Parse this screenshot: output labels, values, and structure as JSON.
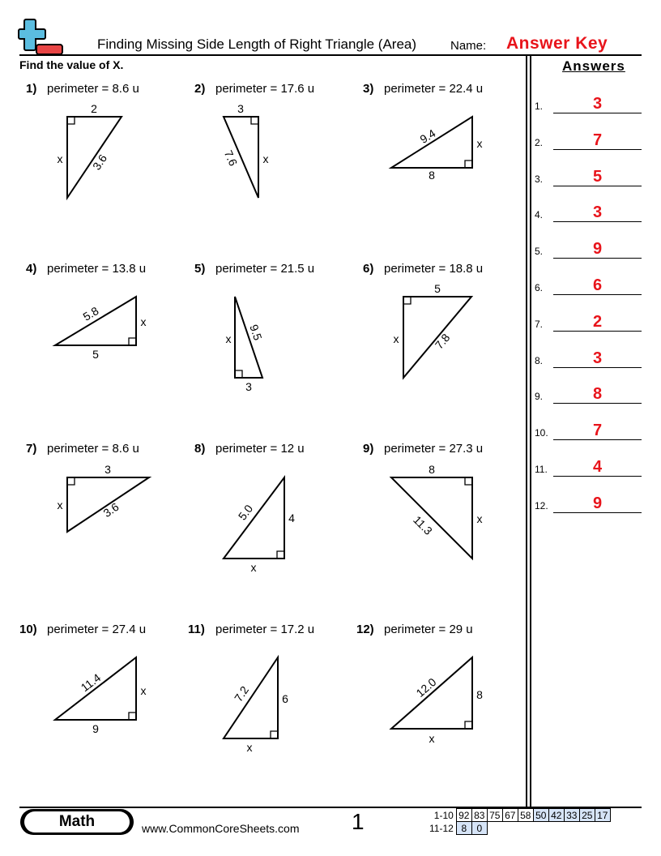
{
  "header": {
    "title": "Finding Missing Side Length of Right Triangle (Area)",
    "name_label": "Name:",
    "name_value": "Answer Key",
    "instructions": "Find the value of X.",
    "logo": "plus-minus-logo"
  },
  "colors": {
    "accent_red": "#e8141b",
    "logo_blue": "#5bbde0",
    "logo_red": "#e84545",
    "score_blue": "#d6e4f7"
  },
  "problems": [
    {
      "num": "1)",
      "text": "perimeter = 8.6 u",
      "labels": [
        "2",
        "x",
        "3.6"
      ]
    },
    {
      "num": "2)",
      "text": "perimeter = 17.6 u",
      "labels": [
        "3",
        "7.6",
        "x"
      ]
    },
    {
      "num": "3)",
      "text": "perimeter = 22.4 u",
      "labels": [
        "9.4",
        "x",
        "8"
      ]
    },
    {
      "num": "4)",
      "text": "perimeter = 13.8 u",
      "labels": [
        "5.8",
        "x",
        "5"
      ]
    },
    {
      "num": "5)",
      "text": "perimeter = 21.5 u",
      "labels": [
        "x",
        "9.5",
        "3"
      ]
    },
    {
      "num": "6)",
      "text": "perimeter = 18.8 u",
      "labels": [
        "5",
        "x",
        "7.8"
      ]
    },
    {
      "num": "7)",
      "text": "perimeter = 8.6 u",
      "labels": [
        "3",
        "x",
        "3.6"
      ]
    },
    {
      "num": "8)",
      "text": "perimeter = 12 u",
      "labels": [
        "5.0",
        "4",
        "x"
      ]
    },
    {
      "num": "9)",
      "text": "perimeter = 27.3 u",
      "labels": [
        "8",
        "11.3",
        "x"
      ]
    },
    {
      "num": "10)",
      "text": "perimeter = 27.4 u",
      "labels": [
        "11.4",
        "x",
        "9"
      ]
    },
    {
      "num": "11)",
      "text": "perimeter = 17.2 u",
      "labels": [
        "7.2",
        "6",
        "x"
      ]
    },
    {
      "num": "12)",
      "text": "perimeter = 29 u",
      "labels": [
        "12.0",
        "8",
        "x"
      ]
    }
  ],
  "answers": {
    "heading": "Answers",
    "items": [
      {
        "n": "1.",
        "v": "3"
      },
      {
        "n": "2.",
        "v": "7"
      },
      {
        "n": "3.",
        "v": "5"
      },
      {
        "n": "4.",
        "v": "3"
      },
      {
        "n": "5.",
        "v": "9"
      },
      {
        "n": "6.",
        "v": "6"
      },
      {
        "n": "7.",
        "v": "2"
      },
      {
        "n": "8.",
        "v": "3"
      },
      {
        "n": "9.",
        "v": "8"
      },
      {
        "n": "10.",
        "v": "7"
      },
      {
        "n": "11.",
        "v": "4"
      },
      {
        "n": "12.",
        "v": "9"
      }
    ]
  },
  "footer": {
    "subject": "Math",
    "url": "www.CommonCoreSheets.com",
    "page": "1",
    "score_rows": [
      {
        "label": "1-10",
        "cells": [
          "92",
          "83",
          "75",
          "67",
          "58",
          "50",
          "42",
          "33",
          "25",
          "17"
        ]
      },
      {
        "label": "11-12",
        "cells": [
          "8",
          "0"
        ]
      }
    ]
  }
}
